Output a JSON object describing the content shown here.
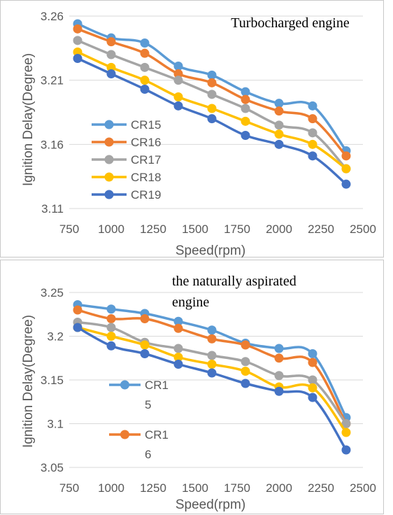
{
  "chart_data": [
    {
      "id": "top",
      "type": "line",
      "title": "Turbocharged engine",
      "xlabel": "Speed(rpm)",
      "ylabel": "Ignition Delay(Degree)",
      "x": [
        800,
        1000,
        1200,
        1400,
        1600,
        1800,
        2000,
        2200,
        2400
      ],
      "xlim": [
        750,
        2500
      ],
      "xticks": [
        750,
        1000,
        1250,
        1500,
        1750,
        2000,
        2250,
        2500
      ],
      "xtick_labels": [
        "750",
        "1000",
        "1250",
        "1500",
        "1750",
        "2000",
        "2250",
        "2500"
      ],
      "ylim": [
        3.11,
        3.26
      ],
      "yticks": [
        3.11,
        3.16,
        3.21,
        3.26
      ],
      "ytick_labels": [
        "3.11",
        "3.16",
        "3.21",
        "3.26"
      ],
      "grid": "horizontal",
      "legend": "left-bottom inside",
      "series": [
        {
          "name": "CR15",
          "color": "#5B9BD5",
          "values": [
            3.254,
            3.243,
            3.239,
            3.221,
            3.214,
            3.201,
            3.192,
            3.19,
            3.155
          ]
        },
        {
          "name": "CR16",
          "color": "#ED7D31",
          "values": [
            3.25,
            3.24,
            3.231,
            3.215,
            3.208,
            3.195,
            3.186,
            3.18,
            3.151
          ]
        },
        {
          "name": "CR17",
          "color": "#A5A5A5",
          "values": [
            3.241,
            3.23,
            3.22,
            3.21,
            3.199,
            3.188,
            3.175,
            3.169,
            3.141
          ]
        },
        {
          "name": "CR18",
          "color": "#FFC000",
          "values": [
            3.232,
            3.22,
            3.21,
            3.197,
            3.188,
            3.178,
            3.168,
            3.16,
            3.141
          ]
        },
        {
          "name": "CR19",
          "color": "#4472C4",
          "values": [
            3.227,
            3.215,
            3.203,
            3.19,
            3.18,
            3.167,
            3.16,
            3.151,
            3.129
          ]
        }
      ]
    },
    {
      "id": "bottom",
      "type": "line",
      "title_lines": [
        "the naturally aspirated",
        "engine"
      ],
      "xlabel": "Speed(rpm)",
      "ylabel": "Ignition Delay(Degree)",
      "x": [
        800,
        1000,
        1200,
        1400,
        1600,
        1800,
        2000,
        2200,
        2400
      ],
      "xlim": [
        750,
        2500
      ],
      "xticks": [
        750,
        1000,
        1250,
        1500,
        1750,
        2000,
        2250,
        2500
      ],
      "xtick_labels": [
        "750",
        "1000",
        "1250",
        "1500",
        "1750",
        "2000",
        "2250",
        "2500"
      ],
      "ylim": [
        3.05,
        3.25
      ],
      "yticks": [
        3.05,
        3.1,
        3.15,
        3.2,
        3.25
      ],
      "ytick_labels": [
        "3.05",
        "3.1",
        "3.15",
        "3.2",
        "3.25"
      ],
      "grid": "horizontal",
      "legend": "left-middle inside",
      "series": [
        {
          "name": "CR15",
          "legend_lines": [
            "CR1",
            "5"
          ],
          "color": "#5B9BD5",
          "values": [
            3.236,
            3.231,
            3.226,
            3.217,
            3.207,
            3.192,
            3.186,
            3.18,
            3.107
          ]
        },
        {
          "name": "CR16",
          "legend_lines": [
            "CR1",
            "6"
          ],
          "color": "#ED7D31",
          "values": [
            3.23,
            3.22,
            3.22,
            3.209,
            3.197,
            3.19,
            3.175,
            3.17,
            3.1
          ]
        },
        {
          "color": "#A5A5A5",
          "values": [
            3.216,
            3.21,
            3.193,
            3.186,
            3.178,
            3.171,
            3.155,
            3.15,
            3.1
          ]
        },
        {
          "color": "#FFC000",
          "values": [
            3.21,
            3.2,
            3.19,
            3.176,
            3.168,
            3.16,
            3.142,
            3.141,
            3.09
          ]
        },
        {
          "color": "#4472C4",
          "values": [
            3.21,
            3.189,
            3.18,
            3.168,
            3.158,
            3.146,
            3.137,
            3.13,
            3.07
          ]
        }
      ]
    }
  ]
}
